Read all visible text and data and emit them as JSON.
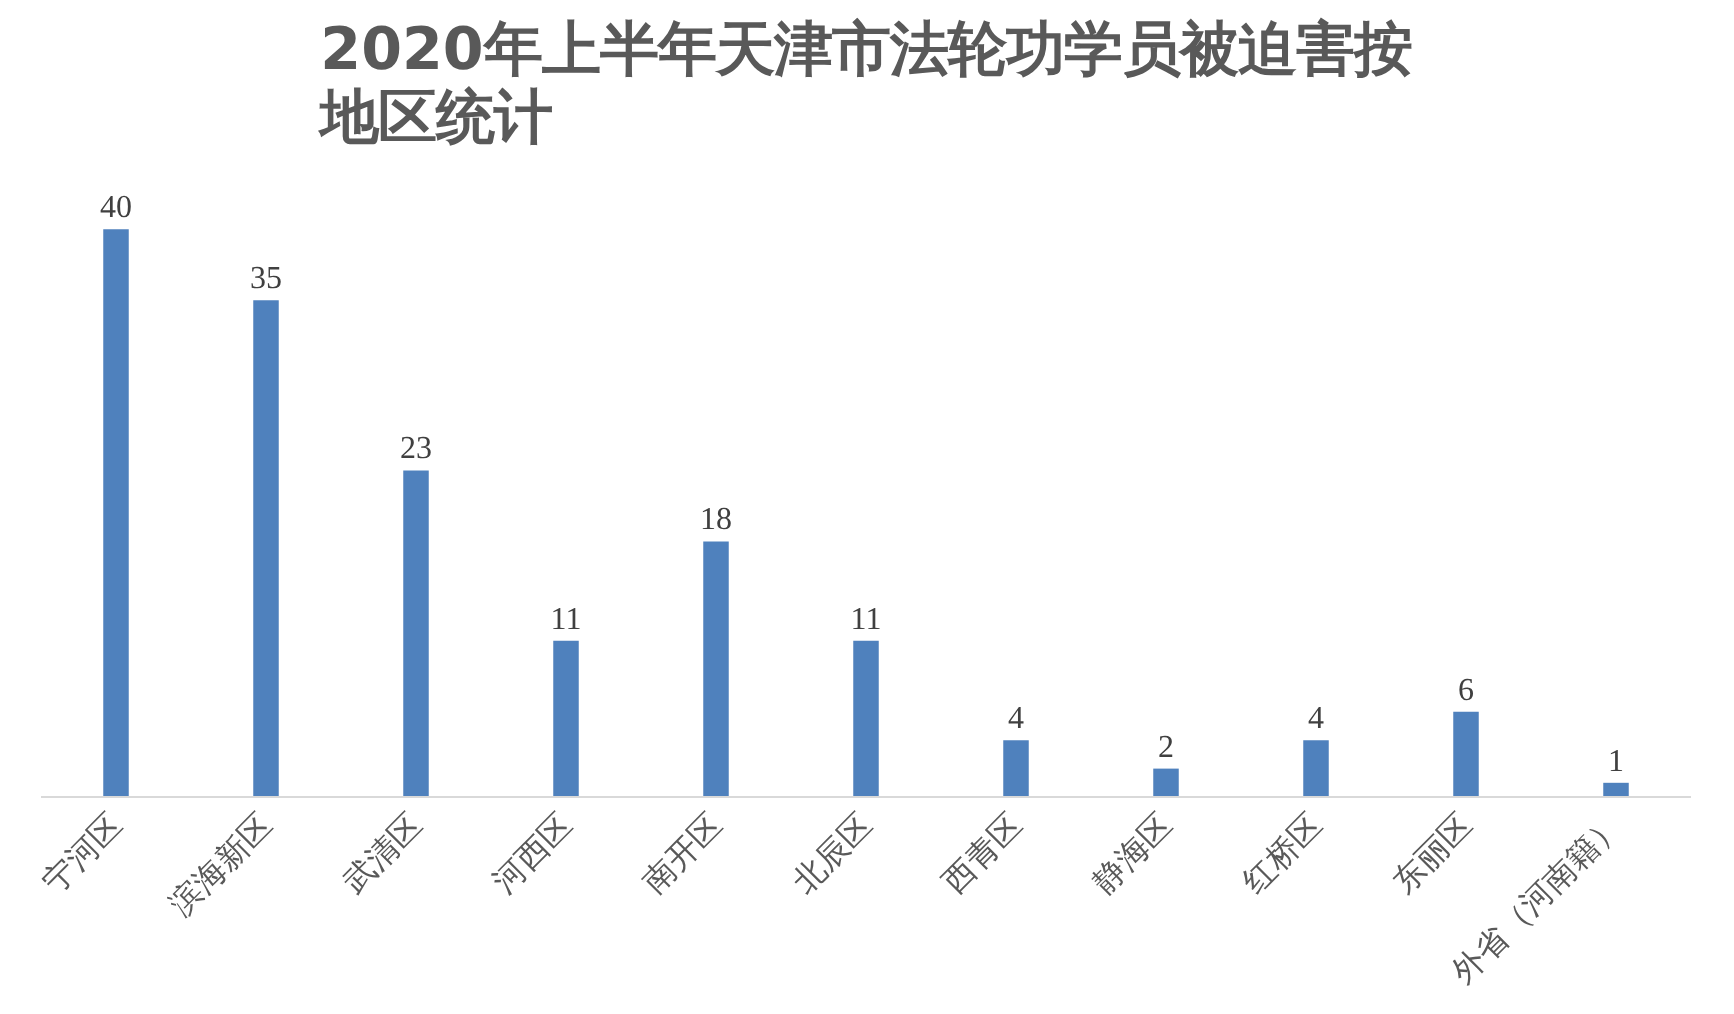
{
  "chart_data": {
    "type": "bar",
    "title": "2020年上半年天津市法轮功学员被迫害按地区统计",
    "categories": [
      "宁河区",
      "滨海新区",
      "武清区",
      "河西区",
      "南开区",
      "北辰区",
      "西青区",
      "静海区",
      "红桥区",
      "东丽区",
      "外省（河南籍）"
    ],
    "values": [
      40,
      35,
      23,
      11,
      18,
      11,
      4,
      2,
      4,
      6,
      1
    ],
    "color": "#4f81bd",
    "data_labels": true,
    "grid": false
  }
}
